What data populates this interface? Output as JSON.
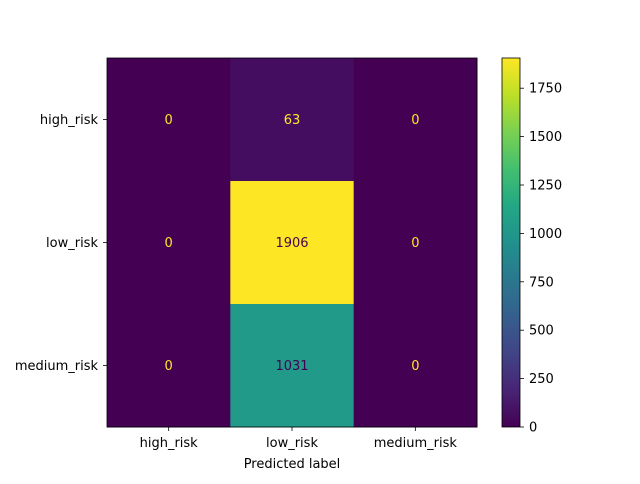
{
  "chart_data": {
    "type": "heatmap",
    "title": "",
    "xlabel": "Predicted label",
    "ylabel": "",
    "x_categories": [
      "high_risk",
      "low_risk",
      "medium_risk"
    ],
    "y_categories": [
      "high_risk",
      "low_risk",
      "medium_risk"
    ],
    "values": [
      [
        0,
        63,
        0
      ],
      [
        0,
        1906,
        0
      ],
      [
        0,
        1031,
        0
      ]
    ],
    "colormap": "viridis",
    "colorbar": {
      "min": 0,
      "max": 1906,
      "ticks": [
        0,
        250,
        500,
        750,
        1000,
        1250,
        1500,
        1750
      ]
    },
    "annotation_colors": {
      "on_dark": "#fde725",
      "on_light": "#440154"
    }
  }
}
